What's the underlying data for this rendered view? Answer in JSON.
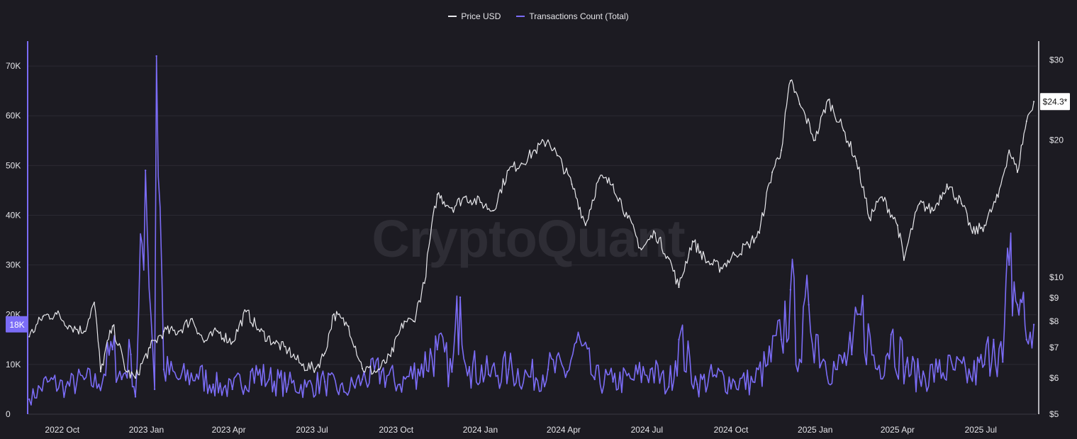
{
  "legend": {
    "items": [
      {
        "label": "Price USD",
        "color": "#e8e8ec"
      },
      {
        "label": "Transactions Count (Total)",
        "color": "#7b6cf6"
      }
    ],
    "placement": "top-center"
  },
  "watermark": "CryptoQuant",
  "colors": {
    "background": "#1c1b22",
    "grid": "#2b2a32",
    "price": "#e8e8ec",
    "transactions": "#7b6cf6"
  },
  "chart_data": {
    "type": "line",
    "x_ticks": [
      "2022 Oct",
      "2023 Jan",
      "2023 Apr",
      "2023 Jul",
      "2023 Oct",
      "2024 Jan",
      "2024 Apr",
      "2024 Jul",
      "2024 Oct",
      "2025 Jan",
      "2025 Apr",
      "2025 Jul"
    ],
    "x_tick_dates": [
      "2022-10-01",
      "2023-01-01",
      "2023-04-01",
      "2023-07-01",
      "2023-10-01",
      "2024-01-01",
      "2024-04-01",
      "2024-07-01",
      "2024-10-01",
      "2025-01-01",
      "2025-04-01",
      "2025-07-01"
    ],
    "x_range": [
      "2022-08-25",
      "2025-08-31"
    ],
    "left_axis": {
      "ticks": [
        "0",
        "10K",
        "20K",
        "30K",
        "40K",
        "50K",
        "60K",
        "70K"
      ],
      "tick_values": [
        0,
        10000,
        20000,
        30000,
        40000,
        50000,
        60000,
        70000
      ],
      "range": [
        0,
        75000
      ],
      "current_label": "18K",
      "current_value": 18000
    },
    "right_axis": {
      "scale": "log",
      "ticks": [
        "$5",
        "$6",
        "$7",
        "$8",
        "$9",
        "$10",
        "$20",
        "$30"
      ],
      "tick_values": [
        5,
        6,
        7,
        8,
        9,
        10,
        20,
        30
      ],
      "range": [
        5,
        33
      ],
      "current_label": "$24.3*",
      "current_value": 24.3
    },
    "grid": true,
    "series": [
      {
        "name": "Price USD",
        "axis": "right",
        "x": [
          "2022-08-26",
          "2022-09-10",
          "2022-09-25",
          "2022-10-10",
          "2022-10-25",
          "2022-11-05",
          "2022-11-12",
          "2022-11-25",
          "2022-12-10",
          "2022-12-20",
          "2023-01-05",
          "2023-01-20",
          "2023-02-05",
          "2023-02-20",
          "2023-03-05",
          "2023-03-20",
          "2023-04-05",
          "2023-04-20",
          "2023-05-05",
          "2023-05-20",
          "2023-06-05",
          "2023-06-20",
          "2023-07-05",
          "2023-07-15",
          "2023-07-25",
          "2023-08-10",
          "2023-08-25",
          "2023-09-10",
          "2023-09-25",
          "2023-10-10",
          "2023-10-20",
          "2023-11-01",
          "2023-11-15",
          "2023-12-01",
          "2023-12-15",
          "2024-01-01",
          "2024-01-15",
          "2024-02-01",
          "2024-02-15",
          "2024-03-01",
          "2024-03-15",
          "2024-03-25",
          "2024-04-10",
          "2024-04-25",
          "2024-05-10",
          "2024-05-25",
          "2024-06-10",
          "2024-06-25",
          "2024-07-10",
          "2024-07-25",
          "2024-08-05",
          "2024-08-20",
          "2024-09-05",
          "2024-09-20",
          "2024-10-05",
          "2024-10-20",
          "2024-11-01",
          "2024-11-15",
          "2024-11-25",
          "2024-12-05",
          "2024-12-15",
          "2025-01-01",
          "2025-01-15",
          "2025-02-01",
          "2025-02-15",
          "2025-03-01",
          "2025-03-15",
          "2025-04-01",
          "2025-04-08",
          "2025-04-25",
          "2025-05-10",
          "2025-05-25",
          "2025-06-10",
          "2025-06-22",
          "2025-07-05",
          "2025-07-20",
          "2025-08-01",
          "2025-08-10",
          "2025-08-20",
          "2025-08-28"
        ],
        "values": [
          7.4,
          8.2,
          8.3,
          7.8,
          7.6,
          8.8,
          6.2,
          7.8,
          6.2,
          6.0,
          7.0,
          7.6,
          7.6,
          8.1,
          7.2,
          7.6,
          7.2,
          8.4,
          7.6,
          7.2,
          6.9,
          6.4,
          6.3,
          6.8,
          8.3,
          7.8,
          6.3,
          6.2,
          6.7,
          8.0,
          8.0,
          9.7,
          15.2,
          14.2,
          15.0,
          14.6,
          14.0,
          17.2,
          17.8,
          19.0,
          20.0,
          18.5,
          16.0,
          13.0,
          16.5,
          16.0,
          13.5,
          11.5,
          12.5,
          11.0,
          9.5,
          12.0,
          10.8,
          10.5,
          11.2,
          11.8,
          12.5,
          17.0,
          19.0,
          27.0,
          24.0,
          20.0,
          24.5,
          21.0,
          18.0,
          13.5,
          15.0,
          13.0,
          10.9,
          14.5,
          14.0,
          16.0,
          14.5,
          12.5,
          13.0,
          15.0,
          19.0,
          17.0,
          22.0,
          24.3
        ]
      },
      {
        "name": "Transactions Count (Total)",
        "axis": "left",
        "x": [
          "2022-08-26",
          "2022-09-15",
          "2022-10-05",
          "2022-10-25",
          "2022-11-10",
          "2022-11-25",
          "2022-12-05",
          "2022-12-15",
          "2022-12-20",
          "2022-12-31",
          "2023-01-10",
          "2023-01-12",
          "2023-01-20",
          "2023-02-05",
          "2023-02-25",
          "2023-03-15",
          "2023-04-05",
          "2023-04-25",
          "2023-05-15",
          "2023-06-05",
          "2023-06-25",
          "2023-07-15",
          "2023-08-05",
          "2023-08-25",
          "2023-09-15",
          "2023-10-05",
          "2023-10-25",
          "2023-11-15",
          "2023-12-01",
          "2023-12-10",
          "2023-12-20",
          "2024-01-10",
          "2024-02-01",
          "2024-02-25",
          "2024-03-15",
          "2024-04-05",
          "2024-04-15",
          "2024-05-05",
          "2024-05-25",
          "2024-06-15",
          "2024-07-05",
          "2024-07-25",
          "2024-08-05",
          "2024-08-25",
          "2024-09-15",
          "2024-10-05",
          "2024-10-25",
          "2024-11-10",
          "2024-11-25",
          "2024-12-05",
          "2024-12-15",
          "2024-12-25",
          "2025-01-10",
          "2025-01-25",
          "2025-02-10",
          "2025-02-20",
          "2025-03-10",
          "2025-03-25",
          "2025-04-10",
          "2025-04-25",
          "2025-05-15",
          "2025-06-01",
          "2025-06-20",
          "2025-07-05",
          "2025-07-15",
          "2025-07-25",
          "2025-08-01",
          "2025-08-10",
          "2025-08-15",
          "2025-08-20",
          "2025-08-28"
        ],
        "values": [
          3000,
          6500,
          5500,
          7000,
          6000,
          13000,
          7000,
          12000,
          3500,
          49000,
          5000,
          72000,
          9000,
          7000,
          8000,
          6000,
          5000,
          8500,
          7000,
          6000,
          5500,
          6500,
          4500,
          7000,
          8500,
          6000,
          9000,
          13000,
          8500,
          23500,
          9500,
          8000,
          9000,
          7500,
          9000,
          8500,
          14500,
          7000,
          6500,
          7000,
          9000,
          5500,
          15000,
          6000,
          7500,
          6500,
          6500,
          10000,
          15000,
          25000,
          11000,
          22000,
          11000,
          9000,
          12000,
          20000,
          9000,
          16000,
          9500,
          7500,
          8500,
          9000,
          7500,
          10000,
          15000,
          10500,
          30000,
          22000,
          22500,
          15000,
          18000
        ]
      }
    ]
  }
}
